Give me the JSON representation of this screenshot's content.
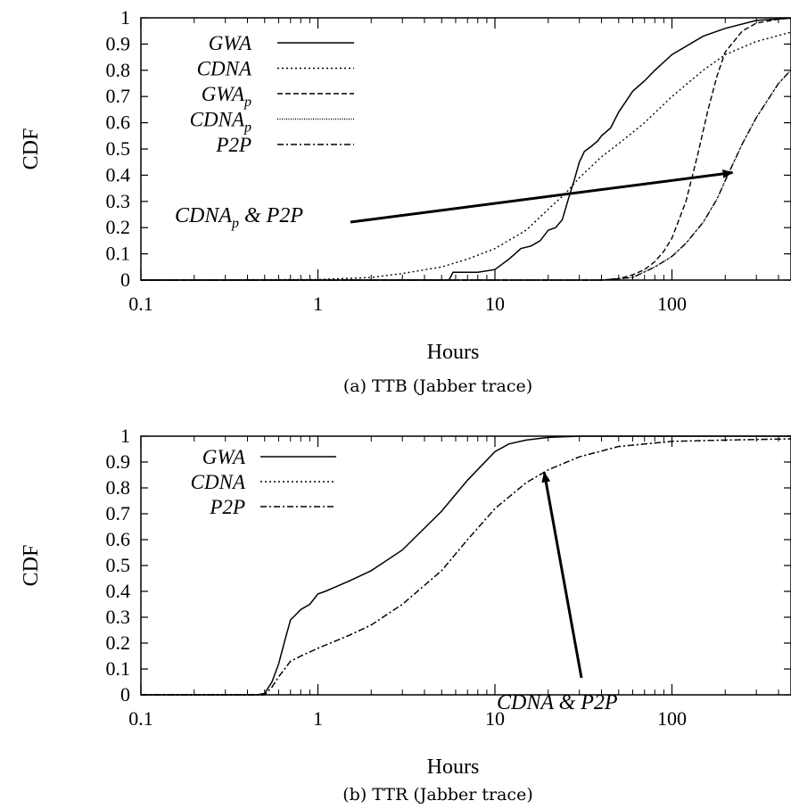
{
  "chart_data": [
    {
      "type": "line",
      "caption": "(a) TTB (Jabber trace)",
      "xlabel": "Hours",
      "ylabel": "CDF",
      "xscale": "log",
      "xlim": [
        0.1,
        500
      ],
      "ylim": [
        0,
        1
      ],
      "xticks": [
        "0.1",
        "1",
        "10",
        "100"
      ],
      "yticks": [
        "0",
        "0.1",
        "0.2",
        "0.3",
        "0.4",
        "0.5",
        "0.6",
        "0.7",
        "0.8",
        "0.9",
        "1"
      ],
      "legend_position": "top-left",
      "annotation": {
        "text": "CDNA",
        "sub": "p",
        "rest": " & P2P",
        "target": [
          220,
          0.41
        ]
      },
      "series": [
        {
          "name": "GWA",
          "style": "solid",
          "x": [
            0.1,
            5.5,
            5.8,
            6,
            8,
            10,
            12,
            13,
            14,
            16,
            18,
            20,
            22,
            24,
            26,
            28,
            30,
            32,
            35,
            38,
            40,
            45,
            50,
            60,
            70,
            80,
            100,
            150,
            200,
            300,
            500
          ],
          "y": [
            0,
            0,
            0.03,
            0.03,
            0.03,
            0.04,
            0.08,
            0.1,
            0.12,
            0.13,
            0.15,
            0.19,
            0.2,
            0.23,
            0.31,
            0.38,
            0.45,
            0.49,
            0.51,
            0.53,
            0.55,
            0.58,
            0.64,
            0.72,
            0.76,
            0.8,
            0.86,
            0.93,
            0.96,
            0.99,
            1.0
          ]
        },
        {
          "name": "CDNA",
          "style": "dotted",
          "x": [
            0.1,
            1,
            2,
            3,
            5,
            7,
            10,
            15,
            20,
            25,
            30,
            40,
            50,
            70,
            100,
            150,
            200,
            300,
            500
          ],
          "y": [
            0,
            0.002,
            0.01,
            0.025,
            0.05,
            0.08,
            0.12,
            0.19,
            0.27,
            0.33,
            0.39,
            0.47,
            0.52,
            0.6,
            0.7,
            0.8,
            0.86,
            0.91,
            0.95
          ]
        },
        {
          "name": "GWAp",
          "style": "dashed",
          "x": [
            0.1,
            40,
            50,
            60,
            70,
            80,
            90,
            100,
            120,
            140,
            160,
            180,
            200,
            250,
            300,
            400,
            500
          ],
          "y": [
            0,
            0,
            0.005,
            0.02,
            0.04,
            0.07,
            0.11,
            0.16,
            0.3,
            0.48,
            0.65,
            0.78,
            0.87,
            0.95,
            0.98,
            0.995,
            1.0
          ]
        },
        {
          "name": "CDNAp",
          "style": "fine-dotted",
          "x": [
            0.1,
            40,
            60,
            80,
            100,
            120,
            150,
            180,
            200,
            250,
            300,
            400,
            500
          ],
          "y": [
            0,
            0,
            0.01,
            0.05,
            0.09,
            0.14,
            0.22,
            0.31,
            0.38,
            0.52,
            0.62,
            0.75,
            0.82
          ]
        },
        {
          "name": "P2P",
          "style": "dash-dot",
          "x": [
            0.1,
            40,
            60,
            80,
            100,
            120,
            150,
            180,
            200,
            250,
            300,
            400,
            500
          ],
          "y": [
            0,
            0,
            0.01,
            0.05,
            0.09,
            0.14,
            0.22,
            0.31,
            0.38,
            0.52,
            0.62,
            0.75,
            0.82
          ]
        }
      ]
    },
    {
      "type": "line",
      "caption": "(b) TTR (Jabber trace)",
      "xlabel": "Hours",
      "ylabel": "CDF",
      "xscale": "log",
      "xlim": [
        0.1,
        500
      ],
      "ylim": [
        0,
        1
      ],
      "xticks": [
        "0.1",
        "1",
        "10",
        "100"
      ],
      "yticks": [
        "0",
        "0.1",
        "0.2",
        "0.3",
        "0.4",
        "0.5",
        "0.6",
        "0.7",
        "0.8",
        "0.9",
        "1"
      ],
      "legend_position": "top-left",
      "annotation": {
        "text": "CDNA & P2P",
        "sub": "",
        "rest": "",
        "target": [
          19,
          0.86
        ]
      },
      "series": [
        {
          "name": "GWA",
          "style": "solid",
          "x": [
            0.1,
            0.45,
            0.5,
            0.55,
            0.6,
            0.65,
            0.7,
            0.75,
            0.8,
            0.9,
            1.0,
            1.1,
            1.5,
            2,
            3,
            5,
            7,
            10,
            12,
            15,
            20,
            30,
            50,
            100,
            500
          ],
          "y": [
            0,
            0,
            0.005,
            0.05,
            0.12,
            0.21,
            0.29,
            0.31,
            0.33,
            0.35,
            0.39,
            0.4,
            0.44,
            0.48,
            0.56,
            0.71,
            0.83,
            0.94,
            0.97,
            0.985,
            0.995,
            1.0,
            1.0,
            1.0,
            1.0
          ]
        },
        {
          "name": "CDNA",
          "style": "dotted",
          "x": [
            0.1,
            0.5,
            0.55,
            0.6,
            0.7,
            0.8,
            1,
            1.5,
            2,
            3,
            5,
            7,
            10,
            15,
            20,
            30,
            50,
            100,
            200,
            500
          ],
          "y": [
            0,
            0,
            0.03,
            0.07,
            0.13,
            0.15,
            0.18,
            0.23,
            0.27,
            0.35,
            0.48,
            0.6,
            0.72,
            0.82,
            0.87,
            0.92,
            0.96,
            0.98,
            0.985,
            0.99
          ]
        },
        {
          "name": "P2P",
          "style": "dash-dot",
          "x": [
            0.1,
            0.5,
            0.55,
            0.6,
            0.7,
            0.8,
            1,
            1.5,
            2,
            3,
            5,
            7,
            10,
            15,
            20,
            30,
            50,
            100,
            200,
            500
          ],
          "y": [
            0,
            0,
            0.03,
            0.07,
            0.13,
            0.15,
            0.18,
            0.23,
            0.27,
            0.35,
            0.48,
            0.6,
            0.72,
            0.82,
            0.87,
            0.92,
            0.96,
            0.98,
            0.985,
            0.99
          ]
        }
      ]
    }
  ]
}
